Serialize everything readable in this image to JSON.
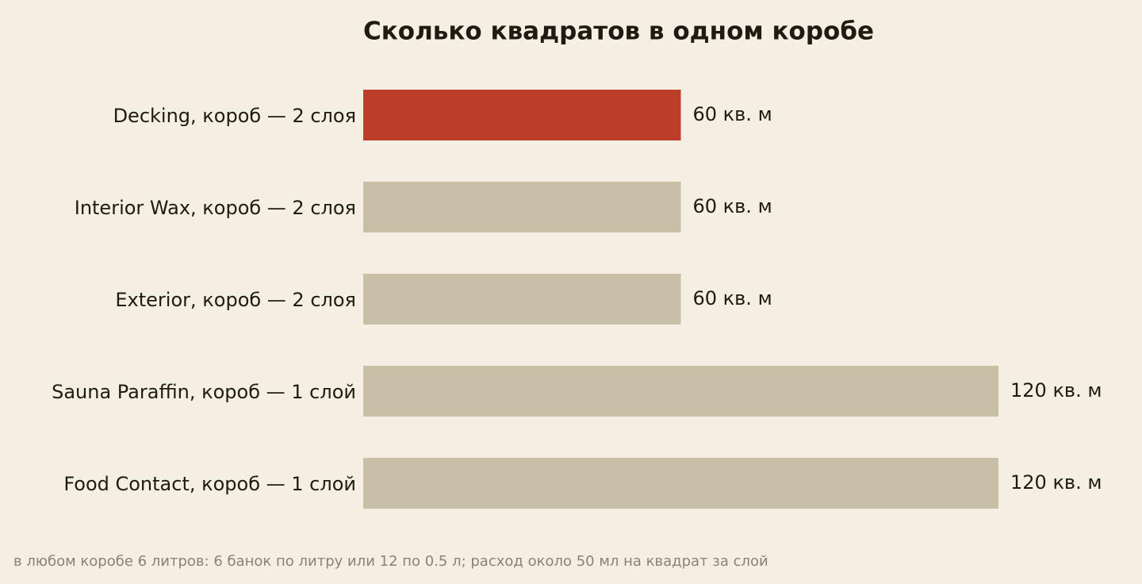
{
  "chart_data": {
    "type": "bar",
    "orientation": "horizontal",
    "title": "Сколько квадратов в одном коробе",
    "categories": [
      "Decking, короб — 2 слоя",
      "Interior Wax, короб — 2 слоя",
      "Exterior, короб — 2 слоя",
      "Sauna Paraffin, короб — 1 слой",
      "Food Contact, короб — 1 слой"
    ],
    "values": [
      60,
      60,
      60,
      120,
      120
    ],
    "value_labels": [
      "60 кв. м",
      "60 кв. м",
      "60 кв. м",
      "120 кв. м",
      "120 кв. м"
    ],
    "colors": [
      "#bc3e28",
      "#c9bfa6",
      "#c9bfa6",
      "#c9bfa6",
      "#c9bfa6"
    ],
    "footnote": "в любом коробе 6 литров: 6 банок по литру или 12 по 0.5 л; расход около 50 мл на квадрат за слой"
  }
}
